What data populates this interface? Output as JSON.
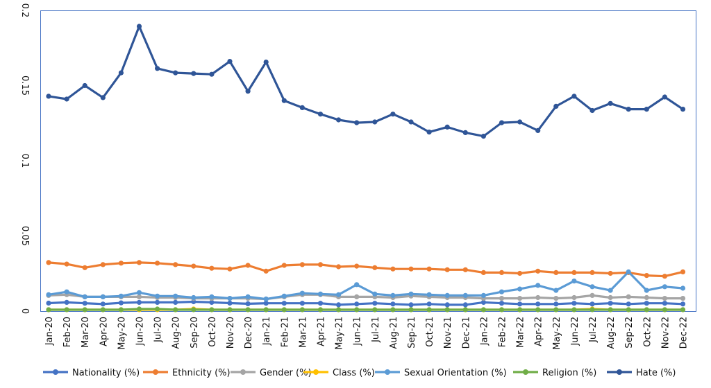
{
  "chart_data": {
    "type": "line",
    "title": "",
    "xlabel": "",
    "ylabel": "",
    "ylim": [
      0,
      0.2
    ],
    "yticks": [
      "0",
      "0.05",
      "0.1",
      "0.15",
      "0.2"
    ],
    "grid": false,
    "legend_position": "bottom",
    "categories": [
      "Jan-20",
      "Feb-20",
      "Mar-20",
      "Apr-20",
      "May-20",
      "Jun-20",
      "Jul-20",
      "Aug-20",
      "Sep-20",
      "Oct-20",
      "Nov-20",
      "Dec-20",
      "Jan-21",
      "Feb-21",
      "Mar-21",
      "Apr-21",
      "May-21",
      "Jun-21",
      "Jul-21",
      "Aug-21",
      "Sep-21",
      "Oct-21",
      "Nov-21",
      "Dec-21",
      "Jan-22",
      "Feb-22",
      "Mar-22",
      "Apr-22",
      "May-22",
      "Jun-22",
      "Jul-22",
      "Aug-22",
      "Sep-22",
      "Oct-22",
      "Nov-22",
      "Dec-22"
    ],
    "series": [
      {
        "name": "Nationality (%)",
        "color": "#4472C4",
        "values": [
          0.0053,
          0.0058,
          0.0052,
          0.0047,
          0.0055,
          0.0058,
          0.0058,
          0.0058,
          0.0062,
          0.0058,
          0.0053,
          0.0049,
          0.0052,
          0.0052,
          0.0052,
          0.0052,
          0.0042,
          0.0047,
          0.0052,
          0.0047,
          0.0042,
          0.0047,
          0.0042,
          0.0042,
          0.0058,
          0.0052,
          0.0047,
          0.0047,
          0.0047,
          0.0052,
          0.0047,
          0.0052,
          0.0047,
          0.0052,
          0.0052,
          0.0047
        ]
      },
      {
        "name": "Ethnicity (%)",
        "color": "#ED7D31",
        "values": [
          0.0323,
          0.0313,
          0.0289,
          0.0309,
          0.0319,
          0.0323,
          0.0319,
          0.0309,
          0.0299,
          0.0285,
          0.028,
          0.0304,
          0.0266,
          0.0304,
          0.0309,
          0.0309,
          0.0295,
          0.0299,
          0.0289,
          0.028,
          0.028,
          0.028,
          0.0275,
          0.0275,
          0.0256,
          0.0256,
          0.0251,
          0.0266,
          0.0256,
          0.0256,
          0.0256,
          0.0251,
          0.0256,
          0.0237,
          0.0232,
          0.0261
        ]
      },
      {
        "name": "Gender (%)",
        "color": "#A5A5A5",
        "values": [
          0.0104,
          0.0109,
          0.0095,
          0.0095,
          0.0095,
          0.0095,
          0.009,
          0.009,
          0.0085,
          0.0085,
          0.0085,
          0.0085,
          0.008,
          0.0095,
          0.0109,
          0.0109,
          0.0095,
          0.0095,
          0.0095,
          0.009,
          0.01,
          0.0095,
          0.009,
          0.009,
          0.0085,
          0.0085,
          0.0085,
          0.009,
          0.0085,
          0.009,
          0.0104,
          0.009,
          0.0095,
          0.009,
          0.0085,
          0.0085
        ]
      },
      {
        "name": "Class (%)",
        "color": "#FFC000",
        "values": [
          0.0009,
          0.0009,
          0.0009,
          0.0009,
          0.0009,
          0.0009,
          0.0009,
          0.0009,
          0.0014,
          0.0009,
          0.0009,
          0.0009,
          0.0009,
          0.0009,
          0.0009,
          0.0009,
          0.0009,
          0.0009,
          0.0009,
          0.0009,
          0.0009,
          0.0009,
          0.0009,
          0.0009,
          0.0009,
          0.0009,
          0.0009,
          0.0009,
          0.0009,
          0.0009,
          0.0014,
          0.0009,
          0.0009,
          0.0009,
          0.0009,
          0.0009
        ]
      },
      {
        "name": "Sexual Orientation (%)",
        "color": "#5B9BD5",
        "values": [
          0.0109,
          0.0128,
          0.0095,
          0.0095,
          0.01,
          0.0123,
          0.01,
          0.01,
          0.009,
          0.0095,
          0.0085,
          0.0095,
          0.008,
          0.01,
          0.0119,
          0.0114,
          0.0109,
          0.0176,
          0.0114,
          0.0104,
          0.0114,
          0.0109,
          0.0104,
          0.0104,
          0.0104,
          0.0128,
          0.0147,
          0.0171,
          0.0138,
          0.02,
          0.0162,
          0.0138,
          0.0261,
          0.0138,
          0.0162,
          0.0152
        ]
      },
      {
        "name": "Religion (%)",
        "color": "#70AD47",
        "values": [
          0.0009,
          0.0009,
          0.0009,
          0.0009,
          0.0009,
          0.0014,
          0.0014,
          0.0009,
          0.0009,
          0.0009,
          0.0009,
          0.0009,
          0.0009,
          0.0009,
          0.0009,
          0.0009,
          0.0009,
          0.0009,
          0.0009,
          0.0009,
          0.0009,
          0.0009,
          0.0009,
          0.0009,
          0.0009,
          0.0009,
          0.0009,
          0.0009,
          0.0009,
          0.0009,
          0.0009,
          0.0009,
          0.0009,
          0.0009,
          0.0009,
          0.0009
        ]
      },
      {
        "name": "Hate (%)",
        "color": "#2F5597",
        "values": [
          0.1429,
          0.141,
          0.15,
          0.142,
          0.1585,
          0.1894,
          0.1614,
          0.1585,
          0.158,
          0.1575,
          0.1661,
          0.1462,
          0.1656,
          0.14,
          0.1353,
          0.131,
          0.1272,
          0.1253,
          0.1258,
          0.131,
          0.1258,
          0.1191,
          0.1224,
          0.1187,
          0.1163,
          0.1253,
          0.1258,
          0.1201,
          0.1362,
          0.1429,
          0.1334,
          0.1381,
          0.1343,
          0.1343,
          0.1424,
          0.1343
        ]
      }
    ]
  }
}
